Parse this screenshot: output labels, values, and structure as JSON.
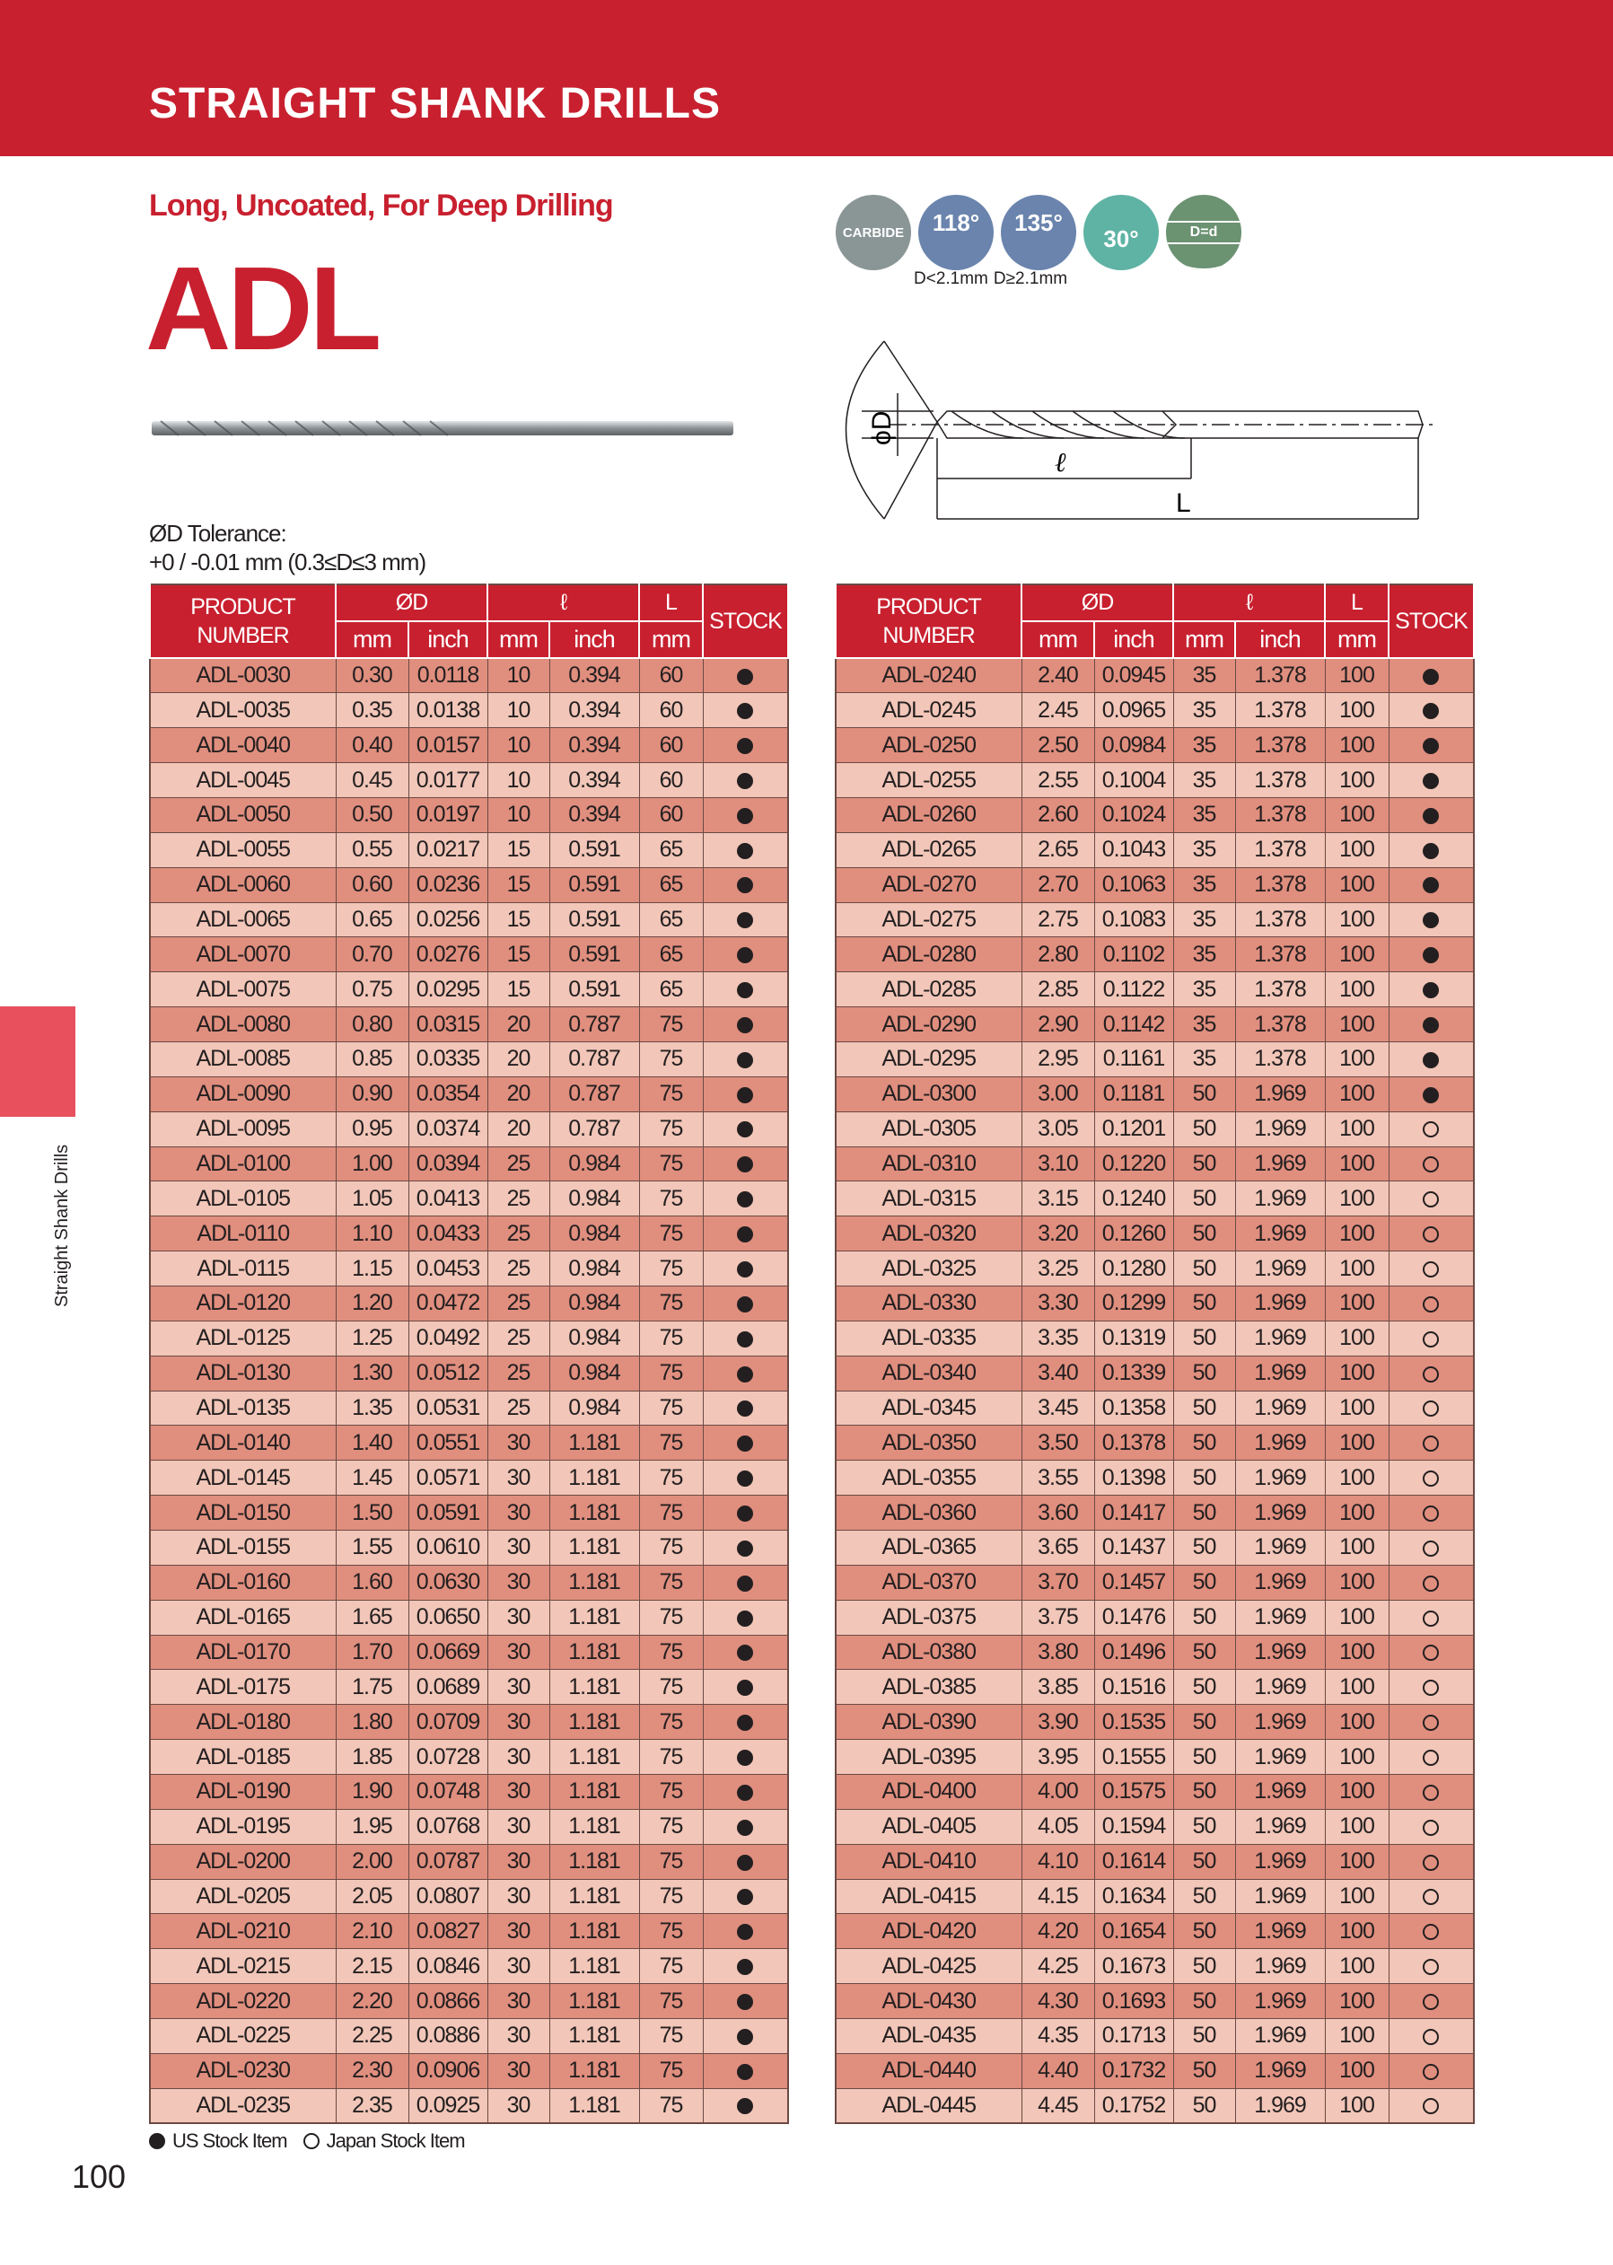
{
  "header": {
    "title": "STRAIGHT SHANK DRILLS"
  },
  "subtitle": "Long, Uncoated, For Deep Drilling",
  "product_name": "ADL",
  "icons": [
    {
      "name": "carbide-icon",
      "label": "CARBIDE",
      "color": "#8a9595"
    },
    {
      "name": "point-angle-118-icon",
      "label": "118°",
      "color": "#6a84ad"
    },
    {
      "name": "point-angle-135-icon",
      "label": "135°",
      "color": "#6a84ad"
    },
    {
      "name": "helix-30-icon",
      "label": "30°",
      "color": "#5fb3a4"
    },
    {
      "name": "shank-d-equals-d-icon",
      "label": "D=d",
      "color": "#6b9271"
    }
  ],
  "icon_captions": [
    "D<2.1mm",
    "D≥2.1mm"
  ],
  "diagram": {
    "diameter_label": "ϕD",
    "flute_label": "ℓ",
    "length_label": "L"
  },
  "tolerance": {
    "line1": "ØD Tolerance:",
    "line2": "+0 / -0.01 mm  (0.3≤D≤3 mm)"
  },
  "table_headers": {
    "product": "PRODUCT NUMBER",
    "d": "ØD",
    "l": "ℓ",
    "L": "L",
    "stock": "STOCK",
    "mm": "mm",
    "inch": "inch"
  },
  "left_rows": [
    [
      "ADL-0030",
      "0.30",
      "0.0118",
      "10",
      "0.394",
      "60",
      "US"
    ],
    [
      "ADL-0035",
      "0.35",
      "0.0138",
      "10",
      "0.394",
      "60",
      "US"
    ],
    [
      "ADL-0040",
      "0.40",
      "0.0157",
      "10",
      "0.394",
      "60",
      "US"
    ],
    [
      "ADL-0045",
      "0.45",
      "0.0177",
      "10",
      "0.394",
      "60",
      "US"
    ],
    [
      "ADL-0050",
      "0.50",
      "0.0197",
      "10",
      "0.394",
      "60",
      "US"
    ],
    [
      "ADL-0055",
      "0.55",
      "0.0217",
      "15",
      "0.591",
      "65",
      "US"
    ],
    [
      "ADL-0060",
      "0.60",
      "0.0236",
      "15",
      "0.591",
      "65",
      "US"
    ],
    [
      "ADL-0065",
      "0.65",
      "0.0256",
      "15",
      "0.591",
      "65",
      "US"
    ],
    [
      "ADL-0070",
      "0.70",
      "0.0276",
      "15",
      "0.591",
      "65",
      "US"
    ],
    [
      "ADL-0075",
      "0.75",
      "0.0295",
      "15",
      "0.591",
      "65",
      "US"
    ],
    [
      "ADL-0080",
      "0.80",
      "0.0315",
      "20",
      "0.787",
      "75",
      "US"
    ],
    [
      "ADL-0085",
      "0.85",
      "0.0335",
      "20",
      "0.787",
      "75",
      "US"
    ],
    [
      "ADL-0090",
      "0.90",
      "0.0354",
      "20",
      "0.787",
      "75",
      "US"
    ],
    [
      "ADL-0095",
      "0.95",
      "0.0374",
      "20",
      "0.787",
      "75",
      "US"
    ],
    [
      "ADL-0100",
      "1.00",
      "0.0394",
      "25",
      "0.984",
      "75",
      "US"
    ],
    [
      "ADL-0105",
      "1.05",
      "0.0413",
      "25",
      "0.984",
      "75",
      "US"
    ],
    [
      "ADL-0110",
      "1.10",
      "0.0433",
      "25",
      "0.984",
      "75",
      "US"
    ],
    [
      "ADL-0115",
      "1.15",
      "0.0453",
      "25",
      "0.984",
      "75",
      "US"
    ],
    [
      "ADL-0120",
      "1.20",
      "0.0472",
      "25",
      "0.984",
      "75",
      "US"
    ],
    [
      "ADL-0125",
      "1.25",
      "0.0492",
      "25",
      "0.984",
      "75",
      "US"
    ],
    [
      "ADL-0130",
      "1.30",
      "0.0512",
      "25",
      "0.984",
      "75",
      "US"
    ],
    [
      "ADL-0135",
      "1.35",
      "0.0531",
      "25",
      "0.984",
      "75",
      "US"
    ],
    [
      "ADL-0140",
      "1.40",
      "0.0551",
      "30",
      "1.181",
      "75",
      "US"
    ],
    [
      "ADL-0145",
      "1.45",
      "0.0571",
      "30",
      "1.181",
      "75",
      "US"
    ],
    [
      "ADL-0150",
      "1.50",
      "0.0591",
      "30",
      "1.181",
      "75",
      "US"
    ],
    [
      "ADL-0155",
      "1.55",
      "0.0610",
      "30",
      "1.181",
      "75",
      "US"
    ],
    [
      "ADL-0160",
      "1.60",
      "0.0630",
      "30",
      "1.181",
      "75",
      "US"
    ],
    [
      "ADL-0165",
      "1.65",
      "0.0650",
      "30",
      "1.181",
      "75",
      "US"
    ],
    [
      "ADL-0170",
      "1.70",
      "0.0669",
      "30",
      "1.181",
      "75",
      "US"
    ],
    [
      "ADL-0175",
      "1.75",
      "0.0689",
      "30",
      "1.181",
      "75",
      "US"
    ],
    [
      "ADL-0180",
      "1.80",
      "0.0709",
      "30",
      "1.181",
      "75",
      "US"
    ],
    [
      "ADL-0185",
      "1.85",
      "0.0728",
      "30",
      "1.181",
      "75",
      "US"
    ],
    [
      "ADL-0190",
      "1.90",
      "0.0748",
      "30",
      "1.181",
      "75",
      "US"
    ],
    [
      "ADL-0195",
      "1.95",
      "0.0768",
      "30",
      "1.181",
      "75",
      "US"
    ],
    [
      "ADL-0200",
      "2.00",
      "0.0787",
      "30",
      "1.181",
      "75",
      "US"
    ],
    [
      "ADL-0205",
      "2.05",
      "0.0807",
      "30",
      "1.181",
      "75",
      "US"
    ],
    [
      "ADL-0210",
      "2.10",
      "0.0827",
      "30",
      "1.181",
      "75",
      "US"
    ],
    [
      "ADL-0215",
      "2.15",
      "0.0846",
      "30",
      "1.181",
      "75",
      "US"
    ],
    [
      "ADL-0220",
      "2.20",
      "0.0866",
      "30",
      "1.181",
      "75",
      "US"
    ],
    [
      "ADL-0225",
      "2.25",
      "0.0886",
      "30",
      "1.181",
      "75",
      "US"
    ],
    [
      "ADL-0230",
      "2.30",
      "0.0906",
      "30",
      "1.181",
      "75",
      "US"
    ],
    [
      "ADL-0235",
      "2.35",
      "0.0925",
      "30",
      "1.181",
      "75",
      "US"
    ]
  ],
  "right_rows": [
    [
      "ADL-0240",
      "2.40",
      "0.0945",
      "35",
      "1.378",
      "100",
      "US"
    ],
    [
      "ADL-0245",
      "2.45",
      "0.0965",
      "35",
      "1.378",
      "100",
      "US"
    ],
    [
      "ADL-0250",
      "2.50",
      "0.0984",
      "35",
      "1.378",
      "100",
      "US"
    ],
    [
      "ADL-0255",
      "2.55",
      "0.1004",
      "35",
      "1.378",
      "100",
      "US"
    ],
    [
      "ADL-0260",
      "2.60",
      "0.1024",
      "35",
      "1.378",
      "100",
      "US"
    ],
    [
      "ADL-0265",
      "2.65",
      "0.1043",
      "35",
      "1.378",
      "100",
      "US"
    ],
    [
      "ADL-0270",
      "2.70",
      "0.1063",
      "35",
      "1.378",
      "100",
      "US"
    ],
    [
      "ADL-0275",
      "2.75",
      "0.1083",
      "35",
      "1.378",
      "100",
      "US"
    ],
    [
      "ADL-0280",
      "2.80",
      "0.1102",
      "35",
      "1.378",
      "100",
      "US"
    ],
    [
      "ADL-0285",
      "2.85",
      "0.1122",
      "35",
      "1.378",
      "100",
      "US"
    ],
    [
      "ADL-0290",
      "2.90",
      "0.1142",
      "35",
      "1.378",
      "100",
      "US"
    ],
    [
      "ADL-0295",
      "2.95",
      "0.1161",
      "35",
      "1.378",
      "100",
      "US"
    ],
    [
      "ADL-0300",
      "3.00",
      "0.1181",
      "50",
      "1.969",
      "100",
      "US"
    ],
    [
      "ADL-0305",
      "3.05",
      "0.1201",
      "50",
      "1.969",
      "100",
      "JP"
    ],
    [
      "ADL-0310",
      "3.10",
      "0.1220",
      "50",
      "1.969",
      "100",
      "JP"
    ],
    [
      "ADL-0315",
      "3.15",
      "0.1240",
      "50",
      "1.969",
      "100",
      "JP"
    ],
    [
      "ADL-0320",
      "3.20",
      "0.1260",
      "50",
      "1.969",
      "100",
      "JP"
    ],
    [
      "ADL-0325",
      "3.25",
      "0.1280",
      "50",
      "1.969",
      "100",
      "JP"
    ],
    [
      "ADL-0330",
      "3.30",
      "0.1299",
      "50",
      "1.969",
      "100",
      "JP"
    ],
    [
      "ADL-0335",
      "3.35",
      "0.1319",
      "50",
      "1.969",
      "100",
      "JP"
    ],
    [
      "ADL-0340",
      "3.40",
      "0.1339",
      "50",
      "1.969",
      "100",
      "JP"
    ],
    [
      "ADL-0345",
      "3.45",
      "0.1358",
      "50",
      "1.969",
      "100",
      "JP"
    ],
    [
      "ADL-0350",
      "3.50",
      "0.1378",
      "50",
      "1.969",
      "100",
      "JP"
    ],
    [
      "ADL-0355",
      "3.55",
      "0.1398",
      "50",
      "1.969",
      "100",
      "JP"
    ],
    [
      "ADL-0360",
      "3.60",
      "0.1417",
      "50",
      "1.969",
      "100",
      "JP"
    ],
    [
      "ADL-0365",
      "3.65",
      "0.1437",
      "50",
      "1.969",
      "100",
      "JP"
    ],
    [
      "ADL-0370",
      "3.70",
      "0.1457",
      "50",
      "1.969",
      "100",
      "JP"
    ],
    [
      "ADL-0375",
      "3.75",
      "0.1476",
      "50",
      "1.969",
      "100",
      "JP"
    ],
    [
      "ADL-0380",
      "3.80",
      "0.1496",
      "50",
      "1.969",
      "100",
      "JP"
    ],
    [
      "ADL-0385",
      "3.85",
      "0.1516",
      "50",
      "1.969",
      "100",
      "JP"
    ],
    [
      "ADL-0390",
      "3.90",
      "0.1535",
      "50",
      "1.969",
      "100",
      "JP"
    ],
    [
      "ADL-0395",
      "3.95",
      "0.1555",
      "50",
      "1.969",
      "100",
      "JP"
    ],
    [
      "ADL-0400",
      "4.00",
      "0.1575",
      "50",
      "1.969",
      "100",
      "JP"
    ],
    [
      "ADL-0405",
      "4.05",
      "0.1594",
      "50",
      "1.969",
      "100",
      "JP"
    ],
    [
      "ADL-0410",
      "4.10",
      "0.1614",
      "50",
      "1.969",
      "100",
      "JP"
    ],
    [
      "ADL-0415",
      "4.15",
      "0.1634",
      "50",
      "1.969",
      "100",
      "JP"
    ],
    [
      "ADL-0420",
      "4.20",
      "0.1654",
      "50",
      "1.969",
      "100",
      "JP"
    ],
    [
      "ADL-0425",
      "4.25",
      "0.1673",
      "50",
      "1.969",
      "100",
      "JP"
    ],
    [
      "ADL-0430",
      "4.30",
      "0.1693",
      "50",
      "1.969",
      "100",
      "JP"
    ],
    [
      "ADL-0435",
      "4.35",
      "0.1713",
      "50",
      "1.969",
      "100",
      "JP"
    ],
    [
      "ADL-0440",
      "4.40",
      "0.1732",
      "50",
      "1.969",
      "100",
      "JP"
    ],
    [
      "ADL-0445",
      "4.45",
      "0.1752",
      "50",
      "1.969",
      "100",
      "JP"
    ]
  ],
  "legend": {
    "us": "US Stock Item",
    "jp": "Japan Stock Item"
  },
  "side_tab": "Straight Shank Drills",
  "page_number": "100"
}
